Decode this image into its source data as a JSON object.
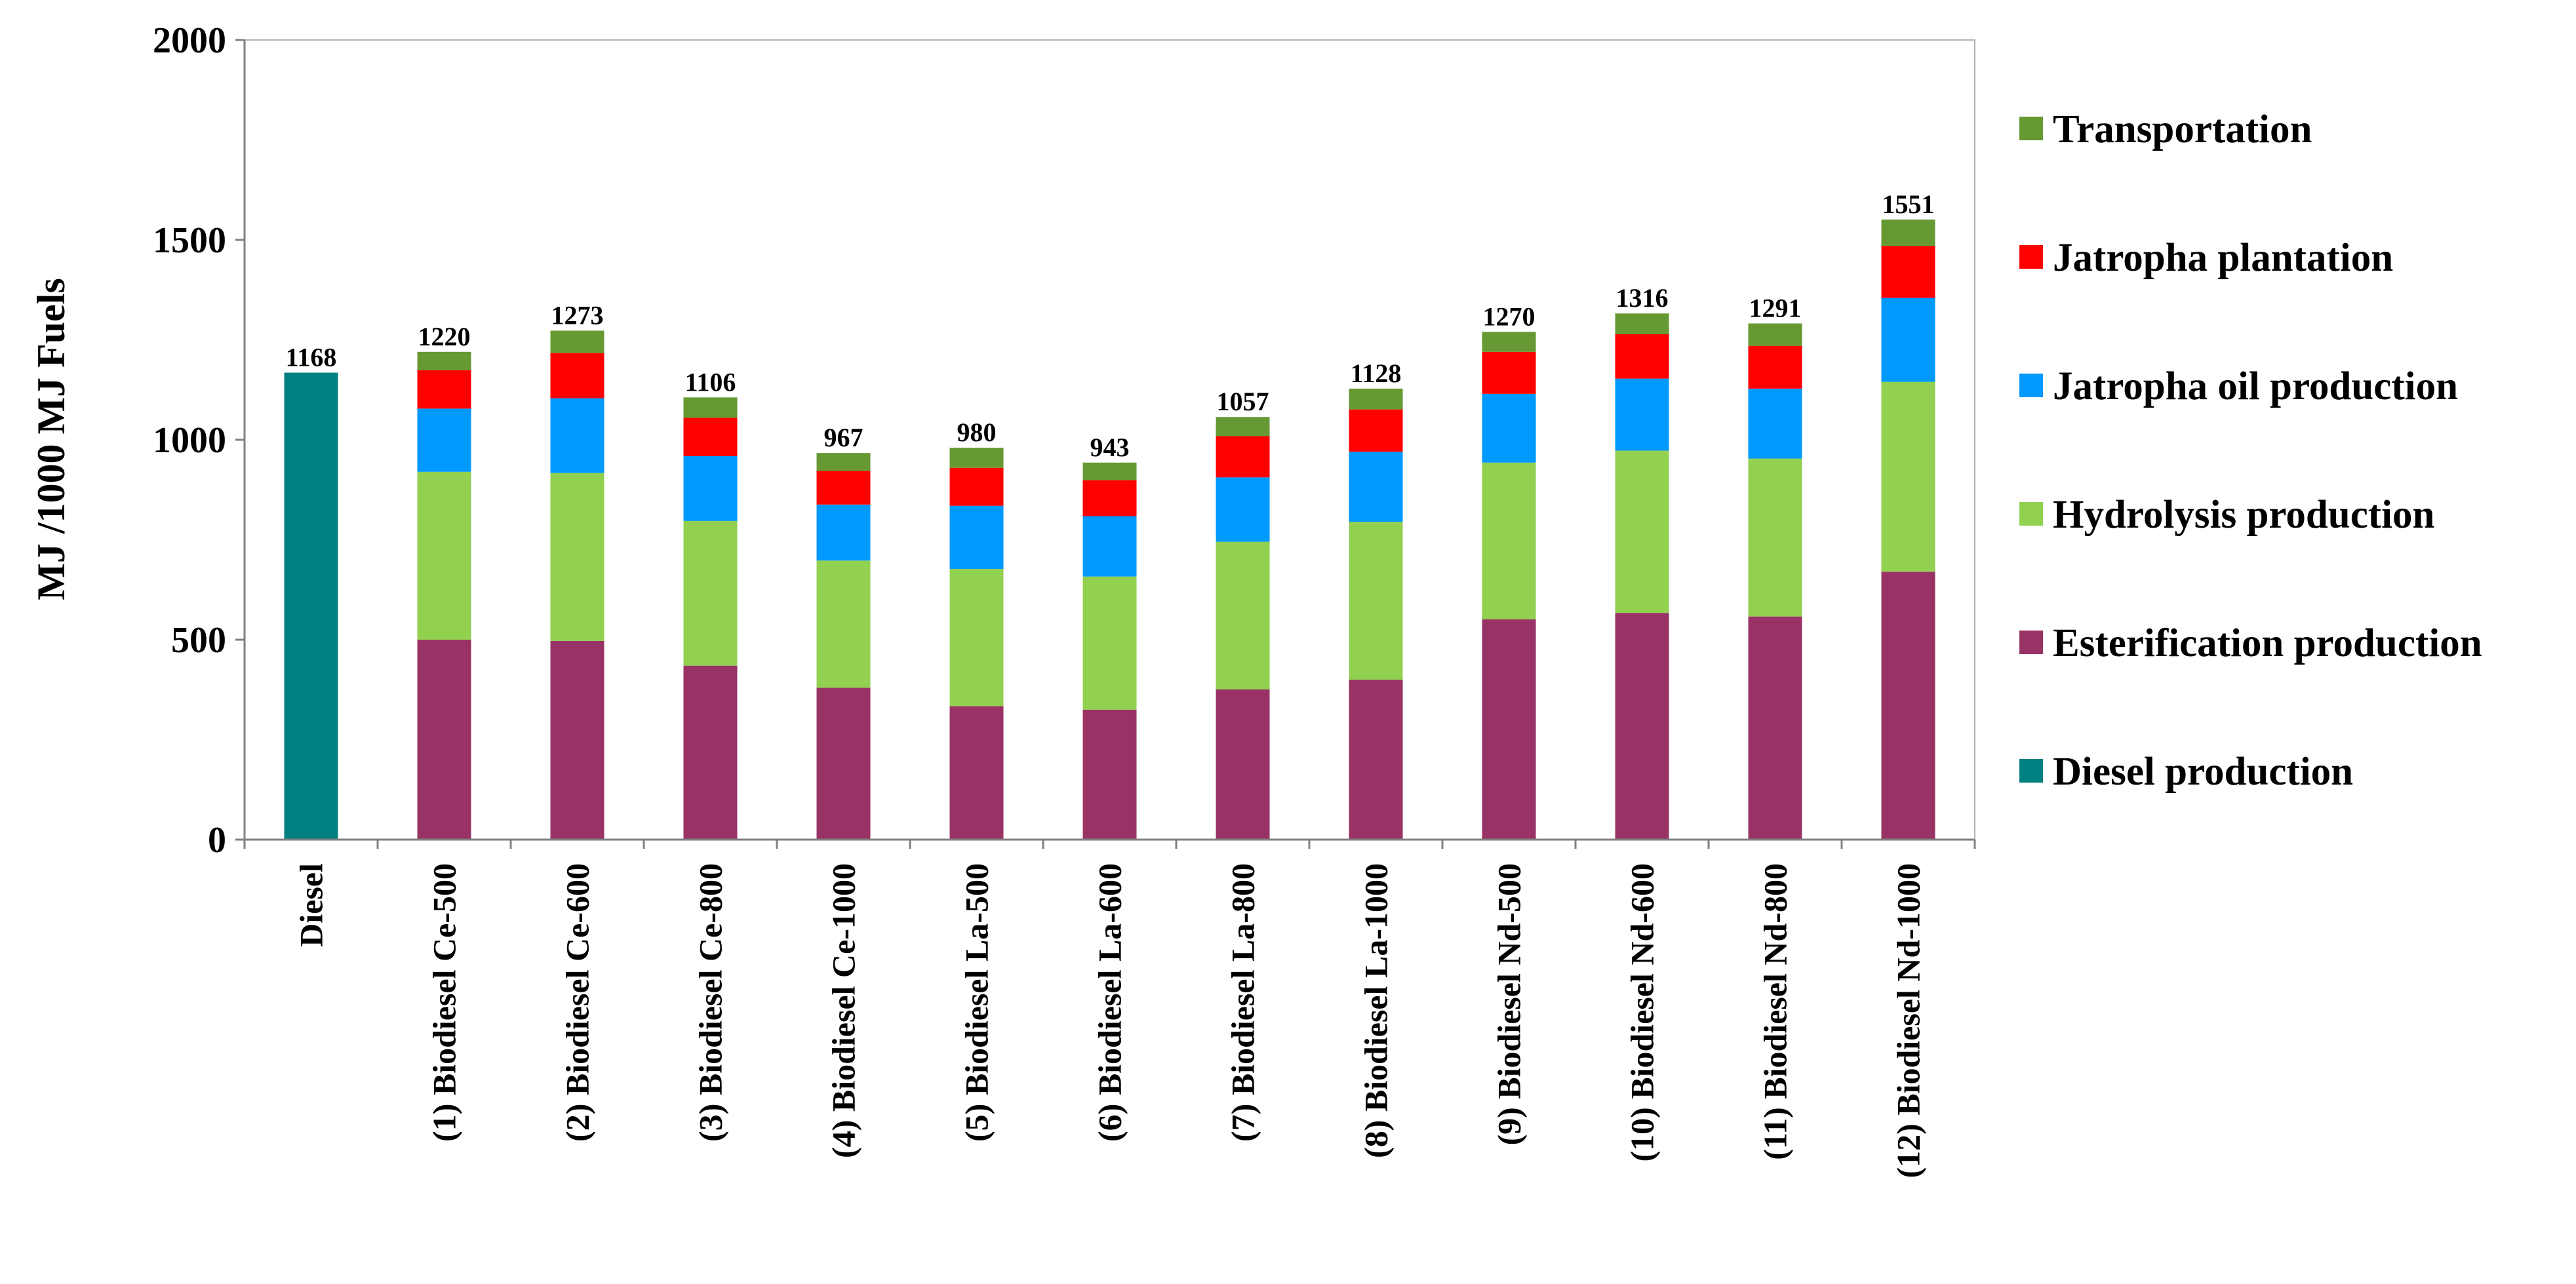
{
  "chart_data": {
    "type": "bar",
    "stacked": true,
    "title": "",
    "xlabel": "",
    "ylabel": "MJ /1000 MJ Fuels",
    "ylim": [
      0,
      2000
    ],
    "yticks": [
      "0",
      "500",
      "1000",
      "1500",
      "2000"
    ],
    "grid": false,
    "legend_position": "right",
    "categories": [
      "Diesel",
      "(1) Biodiesel Ce-500",
      "(2) Biodiesel Ce-600",
      "(3) Biodiesel Ce-800",
      "(4) Biodiesel Ce-1000",
      "(5) Biodiesel La-500",
      "(6) Biodiesel La-600",
      "(7) Biodiesel La-800",
      "(8) Biodiesel La-1000",
      "(9) Biodiesel Nd-500",
      "(10) Biodiesel Nd-600",
      "(11) Biodiesel Nd-800",
      "(12) Biodiesel Nd-1000"
    ],
    "totals": [
      1168,
      1220,
      1273,
      1106,
      967,
      980,
      943,
      1057,
      1128,
      1270,
      1316,
      1291,
      1551
    ],
    "total_labels": [
      "1168",
      "1220",
      "1273",
      "1106",
      "967",
      "980",
      "943",
      "1057",
      "1128",
      "1270",
      "1316",
      "1291",
      "1551"
    ],
    "series": [
      {
        "name": "Diesel production",
        "color": "#008080",
        "values": [
          1168,
          0,
          0,
          0,
          0,
          0,
          0,
          0,
          0,
          0,
          0,
          0,
          0
        ]
      },
      {
        "name": "Esterification production",
        "color": "#993366",
        "values": [
          0,
          500,
          497,
          435,
          380,
          334,
          325,
          376,
          400,
          551,
          567,
          558,
          670
        ]
      },
      {
        "name": "Hydrolysis production",
        "color": "#92D050",
        "values": [
          0,
          420,
          420,
          362,
          318,
          343,
          333,
          369,
          395,
          392,
          406,
          395,
          475
        ]
      },
      {
        "name": "Jatropha oil production",
        "color": "#0099FF",
        "values": [
          0,
          158,
          187,
          162,
          140,
          158,
          151,
          161,
          175,
          172,
          180,
          175,
          210
        ]
      },
      {
        "name": "Jatropha plantation",
        "color": "#FF0000",
        "values": [
          0,
          96,
          113,
          96,
          84,
          95,
          90,
          103,
          106,
          105,
          111,
          107,
          130
        ]
      },
      {
        "name": "Transportation",
        "color": "#669933",
        "values": [
          0,
          46,
          56,
          51,
          45,
          50,
          44,
          48,
          52,
          50,
          52,
          56,
          66
        ]
      }
    ],
    "legend_order": [
      "Transportation",
      "Jatropha plantation",
      "Jatropha oil production",
      "Hydrolysis production",
      "Esterification production",
      "Diesel production"
    ]
  }
}
